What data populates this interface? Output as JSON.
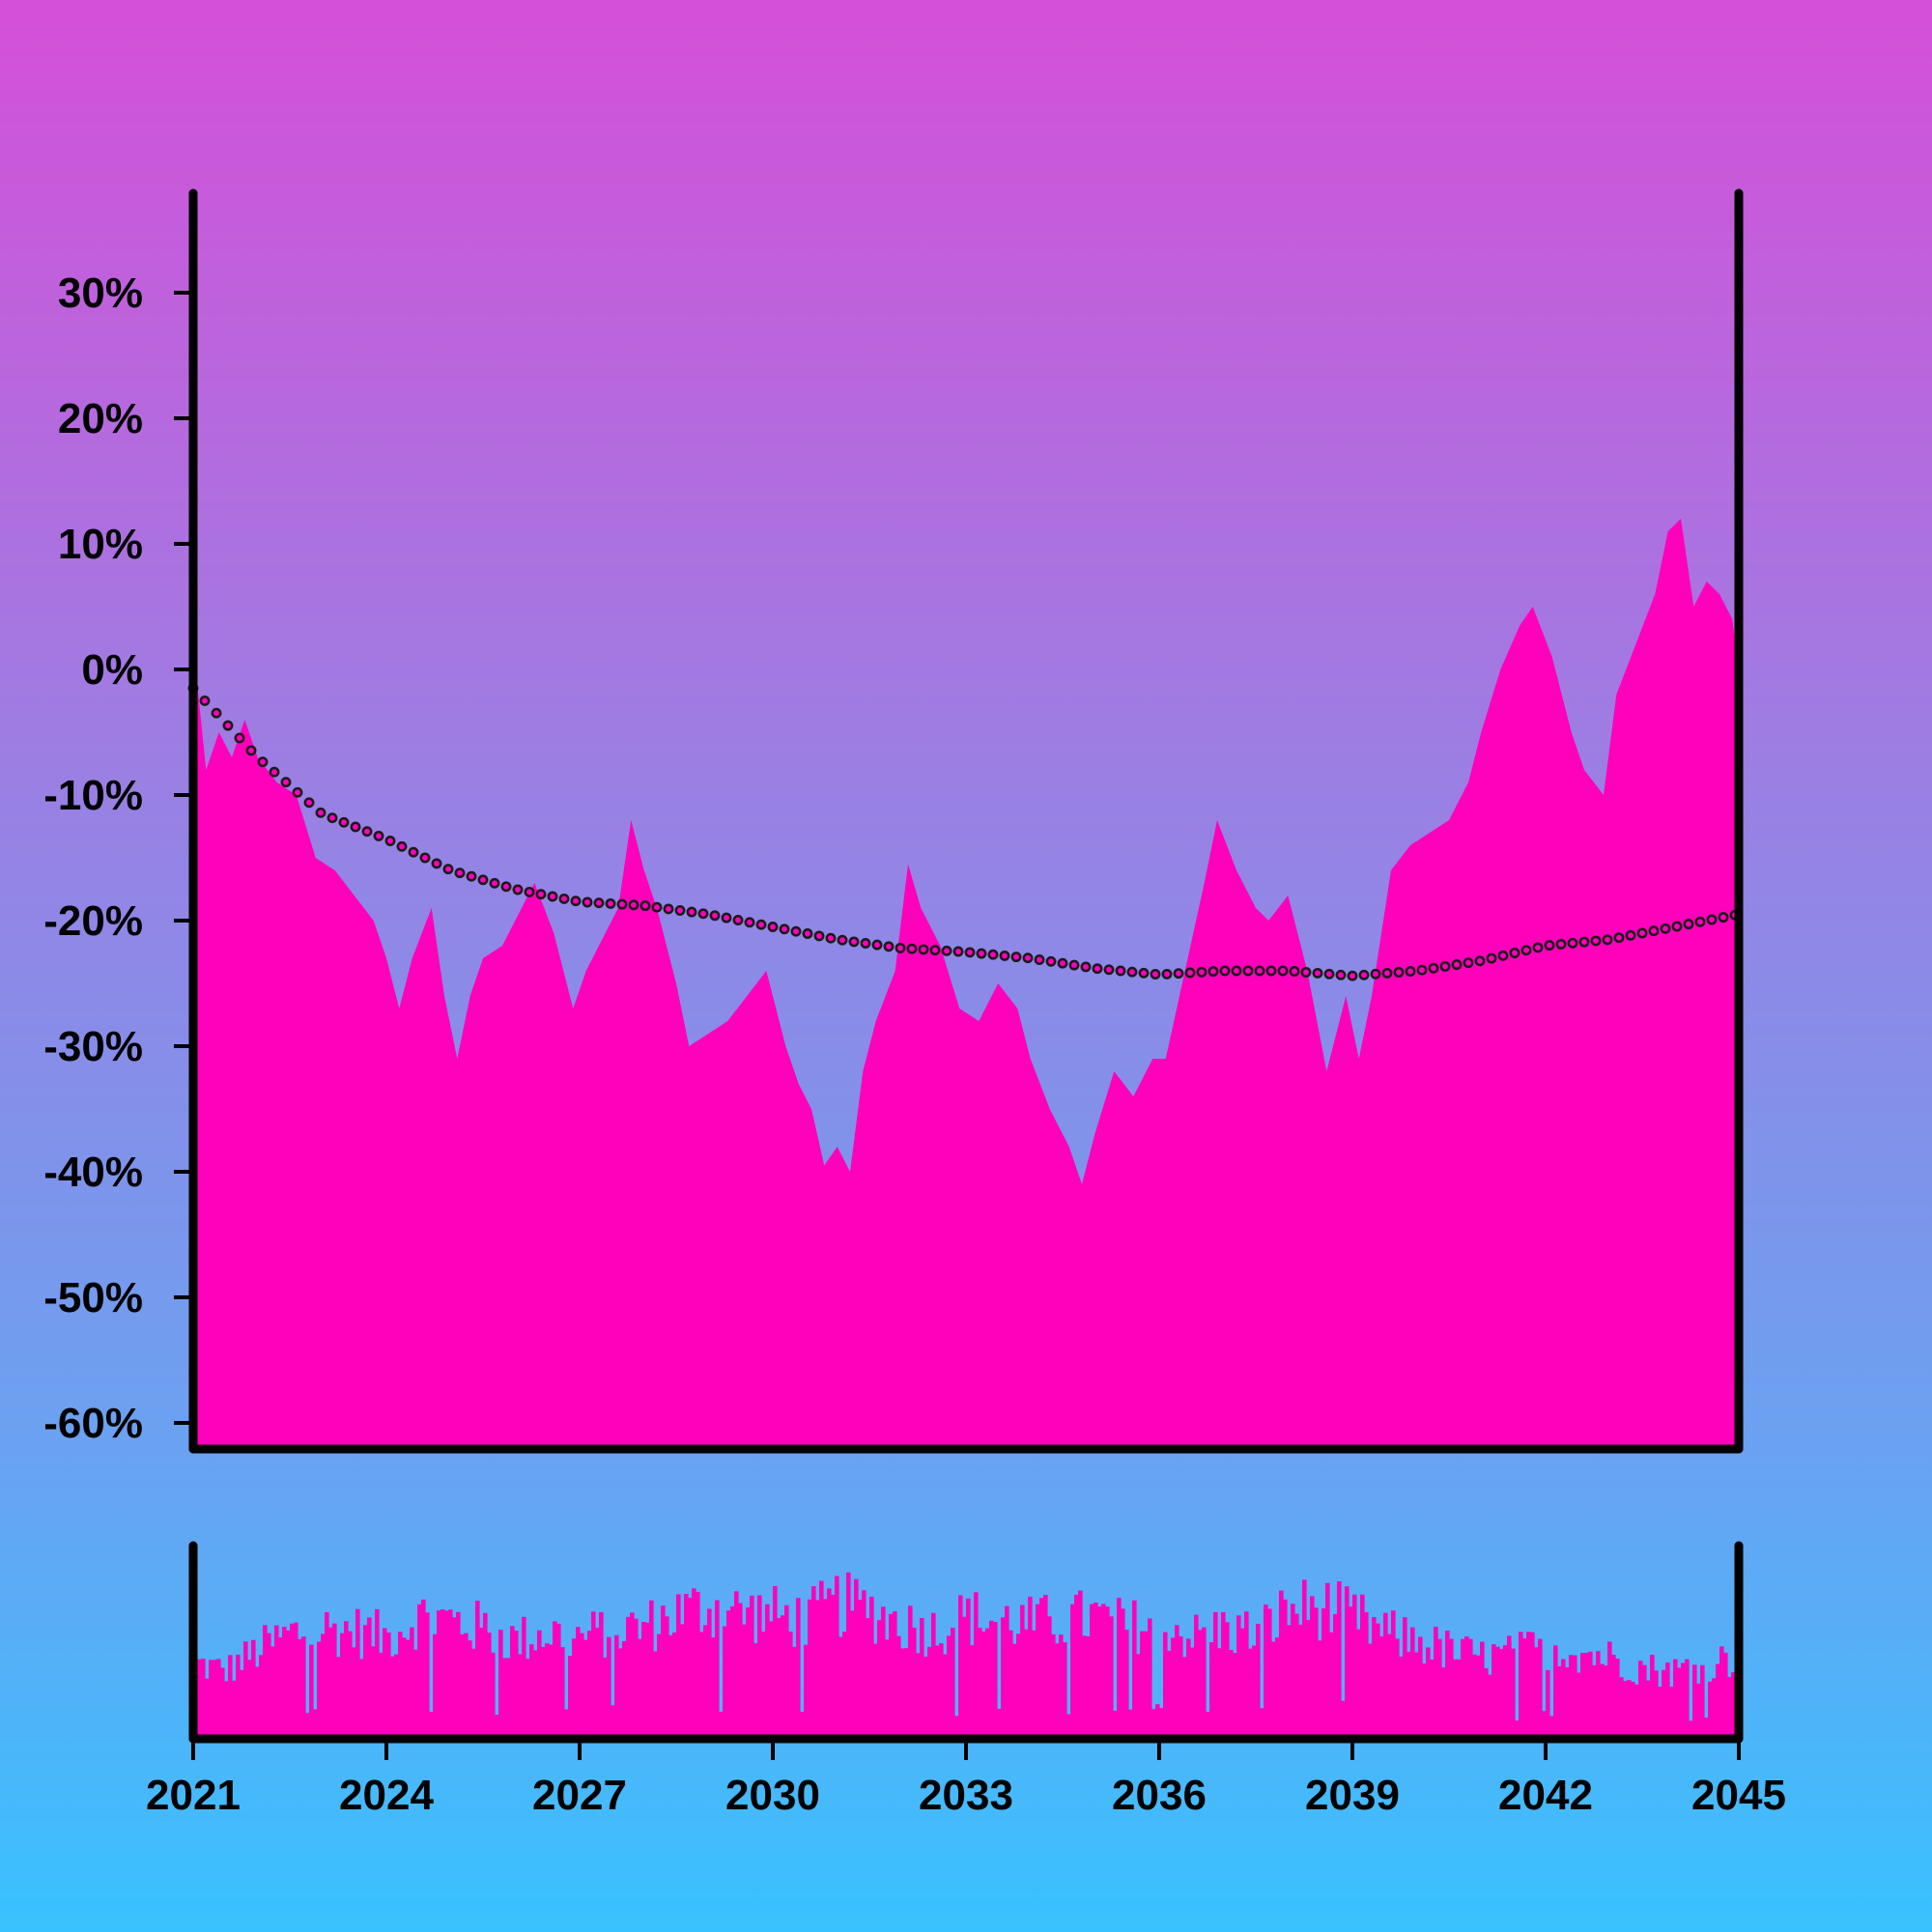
{
  "colors": {
    "area_fill": "#ff00bb",
    "axis": "#000000",
    "trend_marker_fill": "#ff00bb",
    "trend_marker_stroke": "#1a1a1a"
  },
  "chart_data": [
    {
      "type": "area",
      "title": "",
      "xlabel": "",
      "ylabel": "",
      "x_range": [
        2021,
        2045
      ],
      "ylim": [
        -62,
        38
      ],
      "y_ticks": [
        30,
        20,
        10,
        0,
        -10,
        -20,
        -30,
        -40,
        -50,
        -60
      ],
      "y_tick_labels": [
        "30%",
        "20%",
        "10%",
        "0%",
        "-10%",
        "-20%",
        "-30%",
        "-40%",
        "-50%",
        "-60%"
      ],
      "grid": false,
      "legend": "none",
      "series": [
        {
          "kind": "area",
          "points": [
            [
              2021.0,
              2
            ],
            [
              2021.2,
              -8
            ],
            [
              2021.4,
              -5
            ],
            [
              2021.6,
              -7
            ],
            [
              2021.8,
              -4
            ],
            [
              2022.0,
              -7
            ],
            [
              2022.3,
              -9
            ],
            [
              2022.6,
              -10
            ],
            [
              2022.9,
              -15
            ],
            [
              2023.2,
              -16
            ],
            [
              2023.5,
              -18
            ],
            [
              2023.8,
              -20
            ],
            [
              2024.0,
              -23
            ],
            [
              2024.2,
              -27
            ],
            [
              2024.4,
              -23
            ],
            [
              2024.7,
              -19
            ],
            [
              2024.9,
              -26
            ],
            [
              2025.1,
              -31
            ],
            [
              2025.3,
              -26
            ],
            [
              2025.5,
              -23
            ],
            [
              2025.8,
              -22
            ],
            [
              2026.0,
              -20
            ],
            [
              2026.3,
              -17
            ],
            [
              2026.6,
              -21
            ],
            [
              2026.9,
              -27
            ],
            [
              2027.1,
              -24
            ],
            [
              2027.3,
              -22
            ],
            [
              2027.6,
              -19
            ],
            [
              2027.8,
              -12
            ],
            [
              2028.0,
              -16
            ],
            [
              2028.2,
              -19
            ],
            [
              2028.5,
              -25
            ],
            [
              2028.7,
              -30
            ],
            [
              2029.0,
              -29
            ],
            [
              2029.3,
              -28
            ],
            [
              2029.6,
              -26
            ],
            [
              2029.9,
              -24
            ],
            [
              2030.2,
              -30
            ],
            [
              2030.4,
              -33
            ],
            [
              2030.6,
              -35
            ],
            [
              2030.8,
              -39.5
            ],
            [
              2031.0,
              -38
            ],
            [
              2031.2,
              -40
            ],
            [
              2031.4,
              -32
            ],
            [
              2031.6,
              -28
            ],
            [
              2031.9,
              -24
            ],
            [
              2032.1,
              -15.5
            ],
            [
              2032.3,
              -19
            ],
            [
              2032.6,
              -22
            ],
            [
              2032.9,
              -27
            ],
            [
              2033.2,
              -28
            ],
            [
              2033.5,
              -25
            ],
            [
              2033.8,
              -27
            ],
            [
              2034.0,
              -31
            ],
            [
              2034.3,
              -35
            ],
            [
              2034.6,
              -38
            ],
            [
              2034.8,
              -41
            ],
            [
              2035.0,
              -37
            ],
            [
              2035.3,
              -32
            ],
            [
              2035.6,
              -34
            ],
            [
              2035.9,
              -31
            ],
            [
              2036.1,
              -31
            ],
            [
              2036.4,
              -24
            ],
            [
              2036.7,
              -17
            ],
            [
              2036.9,
              -12
            ],
            [
              2037.2,
              -16
            ],
            [
              2037.5,
              -19
            ],
            [
              2037.7,
              -20
            ],
            [
              2038.0,
              -18
            ],
            [
              2038.3,
              -24
            ],
            [
              2038.6,
              -32
            ],
            [
              2038.9,
              -26
            ],
            [
              2039.1,
              -31
            ],
            [
              2039.3,
              -26
            ],
            [
              2039.6,
              -16
            ],
            [
              2039.9,
              -14
            ],
            [
              2040.2,
              -13
            ],
            [
              2040.5,
              -12
            ],
            [
              2040.8,
              -9
            ],
            [
              2041.0,
              -5
            ],
            [
              2041.3,
              0
            ],
            [
              2041.6,
              3.5
            ],
            [
              2041.8,
              5
            ],
            [
              2042.1,
              1
            ],
            [
              2042.4,
              -5
            ],
            [
              2042.6,
              -8
            ],
            [
              2042.9,
              -10
            ],
            [
              2043.1,
              -2
            ],
            [
              2043.4,
              2
            ],
            [
              2043.7,
              6
            ],
            [
              2043.9,
              11
            ],
            [
              2044.1,
              12
            ],
            [
              2044.3,
              5
            ],
            [
              2044.5,
              7
            ],
            [
              2044.7,
              6
            ],
            [
              2044.9,
              4
            ],
            [
              2045.0,
              0
            ]
          ]
        },
        {
          "kind": "trend-markers",
          "points": [
            [
              2021.0,
              -1.5
            ],
            [
              2022.0,
              -7
            ],
            [
              2023.0,
              -11.5
            ],
            [
              2024.0,
              -13.5
            ],
            [
              2025.0,
              -16
            ],
            [
              2026.0,
              -17.5
            ],
            [
              2027.0,
              -18.5
            ],
            [
              2028.0,
              -18.8
            ],
            [
              2029.0,
              -19.5
            ],
            [
              2030.0,
              -20.5
            ],
            [
              2031.0,
              -21.5
            ],
            [
              2032.0,
              -22.2
            ],
            [
              2033.0,
              -22.5
            ],
            [
              2034.0,
              -23
            ],
            [
              2035.0,
              -23.8
            ],
            [
              2036.0,
              -24.3
            ],
            [
              2037.0,
              -24
            ],
            [
              2038.0,
              -24
            ],
            [
              2039.0,
              -24.4
            ],
            [
              2040.0,
              -24
            ],
            [
              2041.0,
              -23.2
            ],
            [
              2042.0,
              -22
            ],
            [
              2043.0,
              -21.5
            ],
            [
              2044.0,
              -20.5
            ],
            [
              2045.0,
              -19.5
            ]
          ]
        }
      ]
    },
    {
      "type": "bar",
      "title": "",
      "xlabel": "",
      "ylabel": "",
      "x_range": [
        2021,
        2045
      ],
      "x_ticks": [
        2021,
        2024,
        2027,
        2030,
        2033,
        2036,
        2039,
        2042,
        2045
      ],
      "x_tick_labels": [
        "2021",
        "2024",
        "2027",
        "2030",
        "2033",
        "2036",
        "2039",
        "2042",
        "2045"
      ],
      "ylim": [
        0,
        100
      ],
      "grid": false,
      "legend": "none",
      "series": [
        {
          "kind": "volume-envelope",
          "points": [
            [
              2021.0,
              45
            ],
            [
              2021.5,
              40
            ],
            [
              2022.0,
              52
            ],
            [
              2022.5,
              62
            ],
            [
              2023.0,
              65
            ],
            [
              2023.5,
              64
            ],
            [
              2024.0,
              60
            ],
            [
              2024.5,
              72
            ],
            [
              2025.0,
              70
            ],
            [
              2025.5,
              65
            ],
            [
              2026.0,
              58
            ],
            [
              2026.5,
              63
            ],
            [
              2027.0,
              60
            ],
            [
              2027.5,
              64
            ],
            [
              2028.0,
              66
            ],
            [
              2028.5,
              74
            ],
            [
              2029.0,
              78
            ],
            [
              2029.5,
              75
            ],
            [
              2030.0,
              73
            ],
            [
              2030.5,
              70
            ],
            [
              2031.0,
              80
            ],
            [
              2031.5,
              76
            ],
            [
              2032.0,
              68
            ],
            [
              2032.5,
              64
            ],
            [
              2033.0,
              72
            ],
            [
              2033.5,
              70
            ],
            [
              2034.0,
              68
            ],
            [
              2034.5,
              70
            ],
            [
              2035.0,
              72
            ],
            [
              2035.5,
              66
            ],
            [
              2036.0,
              70
            ],
            [
              2036.5,
              60
            ],
            [
              2037.0,
              65
            ],
            [
              2037.5,
              62
            ],
            [
              2038.0,
              76
            ],
            [
              2038.5,
              78
            ],
            [
              2039.0,
              72
            ],
            [
              2039.5,
              62
            ],
            [
              2040.0,
              58
            ],
            [
              2040.5,
              52
            ],
            [
              2041.0,
              48
            ],
            [
              2041.5,
              50
            ],
            [
              2042.0,
              55
            ],
            [
              2042.5,
              52
            ],
            [
              2043.0,
              48
            ],
            [
              2043.5,
              42
            ],
            [
              2044.0,
              40
            ],
            [
              2044.5,
              45
            ],
            [
              2045.0,
              48
            ]
          ]
        }
      ]
    }
  ]
}
